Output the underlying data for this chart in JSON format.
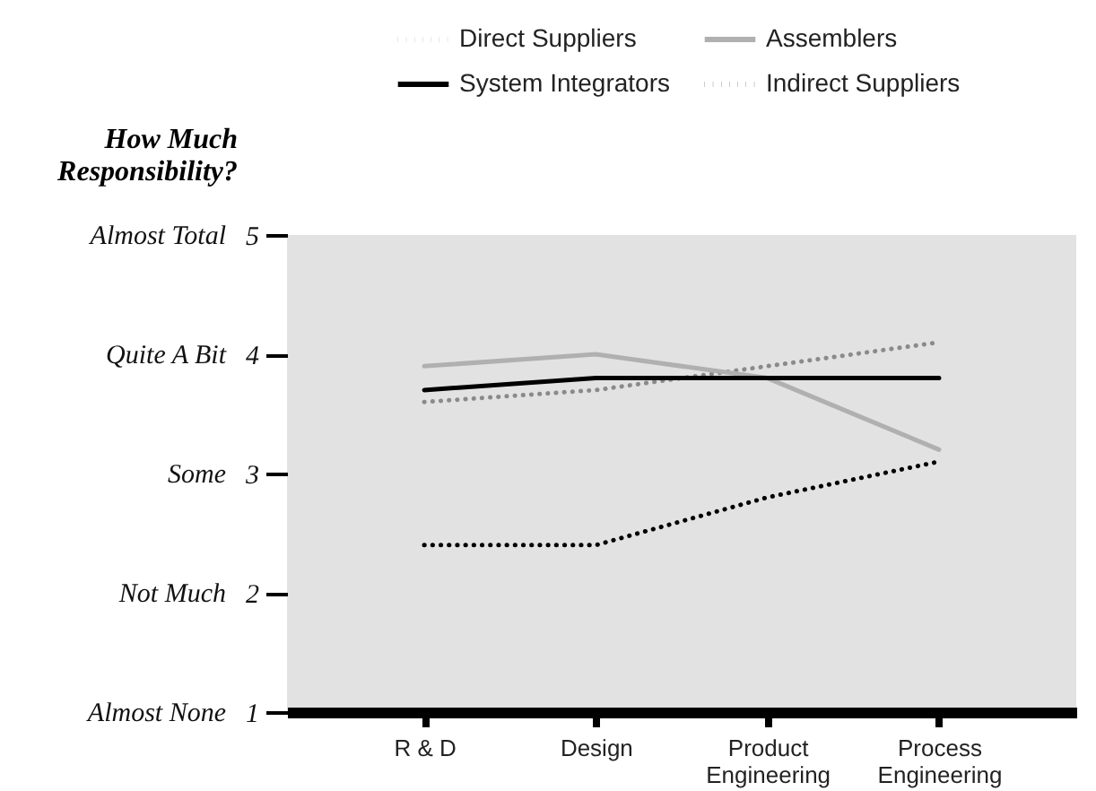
{
  "chart_data": {
    "type": "line",
    "ylabel": "How Much Responsibility?",
    "categories": [
      "R & D",
      "Design",
      "Product Engineering",
      "Process Engineering"
    ],
    "series": [
      {
        "name": "Direct Suppliers",
        "color": "#8a8a8a",
        "line_style": "dotted",
        "values": [
          3.6,
          3.7,
          3.9,
          4.1
        ]
      },
      {
        "name": "Assemblers",
        "color": "#b0b0b0",
        "line_style": "solid",
        "values": [
          3.9,
          4.0,
          3.8,
          3.2
        ]
      },
      {
        "name": "System Integrators",
        "color": "#000000",
        "line_style": "solid",
        "values": [
          3.7,
          3.8,
          3.8,
          3.8
        ]
      },
      {
        "name": "Indirect Suppliers",
        "color": "#000000",
        "line_style": "dotted",
        "values": [
          2.4,
          2.4,
          2.8,
          3.1
        ]
      }
    ],
    "ylim": [
      1,
      5
    ],
    "yticks": [
      1,
      2,
      3,
      4,
      5
    ],
    "annotations": [
      "Almost Total",
      "Quite A Bit",
      "Some",
      "Not Much",
      "Almost None"
    ],
    "grid": false,
    "legend": "top right",
    "marker": "none"
  }
}
